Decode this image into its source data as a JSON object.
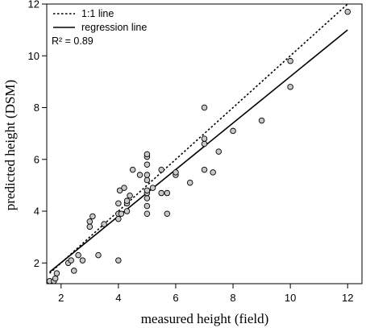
{
  "chart_data": {
    "type": "scatter",
    "xlabel": "measured height (field)",
    "ylabel": "predicted height (DSM)",
    "xlim": [
      1.5,
      12.5
    ],
    "ylim": [
      1.2,
      12
    ],
    "x_ticks": [
      "2",
      "4",
      "6",
      "8",
      "10",
      "12"
    ],
    "y_ticks": [
      "2",
      "4",
      "6",
      "8",
      "10",
      "12"
    ],
    "grid": false,
    "legend_position": "top-left",
    "legend": [
      {
        "label": "1:1 line",
        "style": "dotted"
      },
      {
        "label": "regression line",
        "style": "solid"
      }
    ],
    "annotation": "R² = 0.89",
    "lines": {
      "one_to_one": [
        [
          1.6,
          1.6
        ],
        [
          12.0,
          12.0
        ]
      ],
      "regression": [
        [
          1.6,
          1.65
        ],
        [
          12.0,
          11.0
        ]
      ]
    },
    "points": {
      "x": [
        1.6,
        1.75,
        1.8,
        1.85,
        2.25,
        2.35,
        2.45,
        2.6,
        2.75,
        3.0,
        3.0,
        3.1,
        3.3,
        3.5,
        4.0,
        4.0,
        4.0,
        4.0,
        4.05,
        4.1,
        4.2,
        4.3,
        4.3,
        4.3,
        4.4,
        4.5,
        4.75,
        5.0,
        5.0,
        5.0,
        5.0,
        5.0,
        5.0,
        5.0,
        5.0,
        5.0,
        5.0,
        5.2,
        5.5,
        5.5,
        5.7,
        5.7,
        6.0,
        6.0,
        6.5,
        7.0,
        7.0,
        7.0,
        7.0,
        7.3,
        7.5,
        8.0,
        9.0,
        10.0,
        10.0,
        12.0
      ],
      "y": [
        1.3,
        1.3,
        1.4,
        1.6,
        2.0,
        2.1,
        1.7,
        2.3,
        2.1,
        3.4,
        3.6,
        3.8,
        2.3,
        3.5,
        2.1,
        3.7,
        3.9,
        4.3,
        4.8,
        3.9,
        4.9,
        4.0,
        4.3,
        4.4,
        4.6,
        5.6,
        5.4,
        3.9,
        4.5,
        4.7,
        4.8,
        5.2,
        5.4,
        5.8,
        6.1,
        6.2,
        4.2,
        4.9,
        4.7,
        5.6,
        4.7,
        3.9,
        5.4,
        5.5,
        5.1,
        5.6,
        6.6,
        6.8,
        8.0,
        5.5,
        6.3,
        7.1,
        7.5,
        8.8,
        9.8,
        11.7
      ]
    },
    "colors": {
      "axis": "#000000",
      "point_fill": "#c8c8c8",
      "point_stroke": "#000000"
    }
  }
}
